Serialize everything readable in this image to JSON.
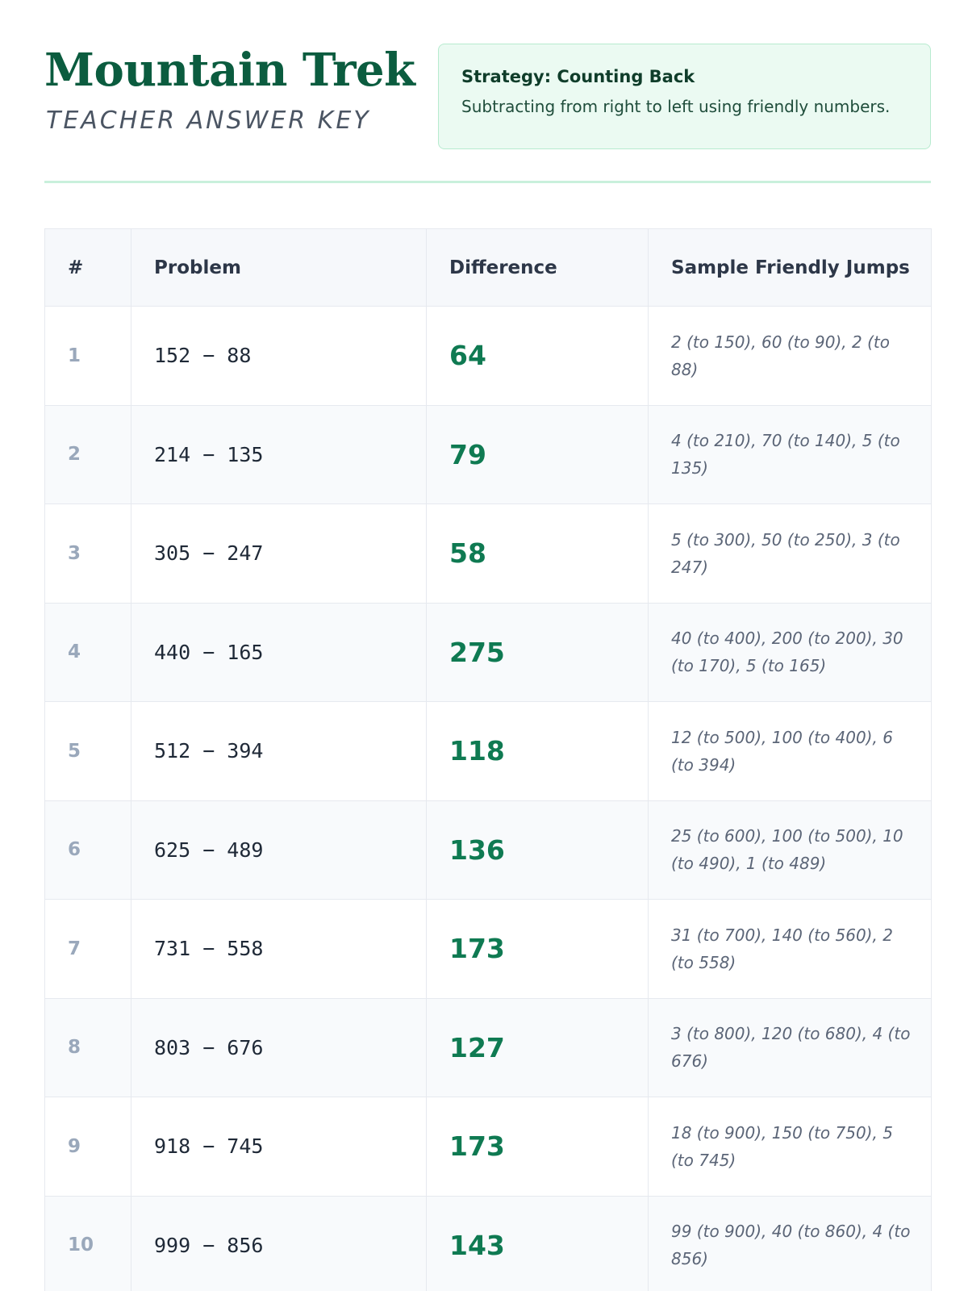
{
  "header": {
    "title": "Mountain Trek",
    "subtitle": "TEACHER ANSWER KEY"
  },
  "strategy": {
    "title": "Strategy: Counting Back",
    "text": "Subtracting from right to left using friendly numbers."
  },
  "table": {
    "columns": [
      "#",
      "Problem",
      "Difference",
      "Sample Friendly Jumps"
    ],
    "rows": [
      {
        "num": "1",
        "problem": "152 − 88",
        "difference": "64",
        "jumps": "2 (to 150), 60 (to 90), 2 (to 88)"
      },
      {
        "num": "2",
        "problem": "214 − 135",
        "difference": "79",
        "jumps": "4 (to 210), 70 (to 140), 5 (to 135)"
      },
      {
        "num": "3",
        "problem": "305 − 247",
        "difference": "58",
        "jumps": "5 (to 300), 50 (to 250), 3 (to 247)"
      },
      {
        "num": "4",
        "problem": "440 − 165",
        "difference": "275",
        "jumps": "40 (to 400), 200 (to 200), 30 (to 170), 5 (to 165)"
      },
      {
        "num": "5",
        "problem": "512 − 394",
        "difference": "118",
        "jumps": "12 (to 500), 100 (to 400), 6 (to 394)"
      },
      {
        "num": "6",
        "problem": "625 − 489",
        "difference": "136",
        "jumps": "25 (to 600), 100 (to 500), 10 (to 490), 1 (to 489)"
      },
      {
        "num": "7",
        "problem": "731 − 558",
        "difference": "173",
        "jumps": "31 (to 700), 140 (to 560), 2 (to 558)"
      },
      {
        "num": "8",
        "problem": "803 − 676",
        "difference": "127",
        "jumps": "3 (to 800), 120 (to 680), 4 (to 676)"
      },
      {
        "num": "9",
        "problem": "918 − 745",
        "difference": "173",
        "jumps": "18 (to 900), 150 (to 750), 5 (to 745)"
      },
      {
        "num": "10",
        "problem": "999 − 856",
        "difference": "143",
        "jumps": "99 (to 900), 40 (to 860), 4 (to 856)"
      }
    ]
  }
}
